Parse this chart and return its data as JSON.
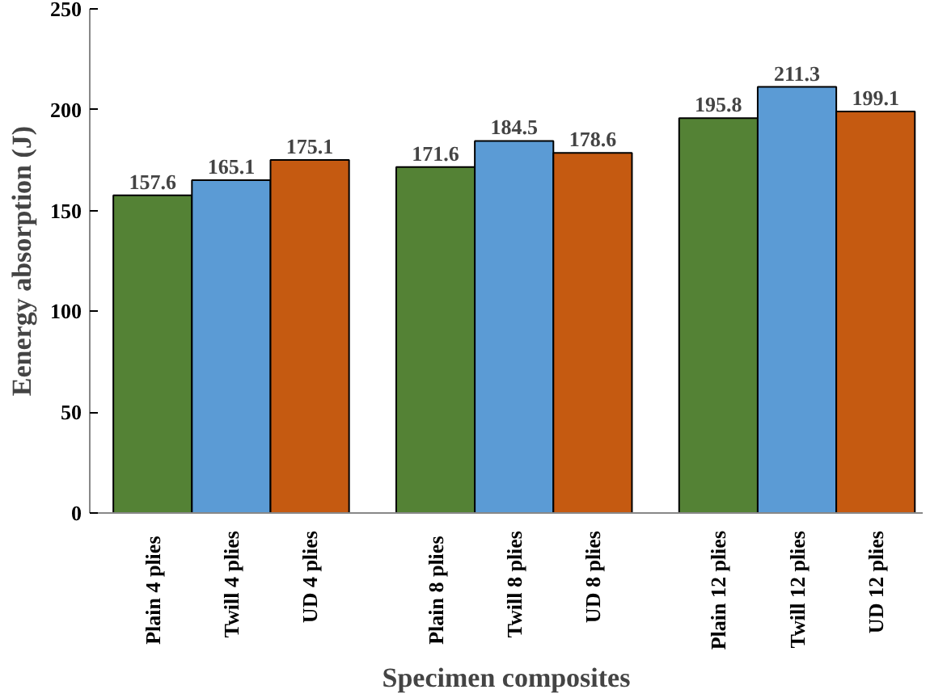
{
  "chart_data": {
    "type": "bar",
    "xlabel": "Specimen composites",
    "ylabel": "Eenergy absorption (J)",
    "categories": [
      "Plain 4  plies",
      "Twill 4 plies",
      "UD 4 plies",
      "Plain 8  plies",
      "Twill 8 plies",
      "UD 8 plies",
      "Plain 12 plies",
      "Twill 12 plies",
      "UD 12 plies"
    ],
    "values": [
      157.6,
      165.1,
      175.1,
      171.6,
      184.5,
      178.6,
      195.8,
      211.3,
      199.1
    ],
    "colors": [
      "#548235",
      "#5b9bd5",
      "#c55a11",
      "#548235",
      "#5b9bd5",
      "#c55a11",
      "#548235",
      "#5b9bd5",
      "#c55a11"
    ],
    "ylim": [
      0,
      250
    ],
    "yticks": [
      0,
      50,
      100,
      150,
      200,
      250
    ],
    "data_labels": true
  }
}
